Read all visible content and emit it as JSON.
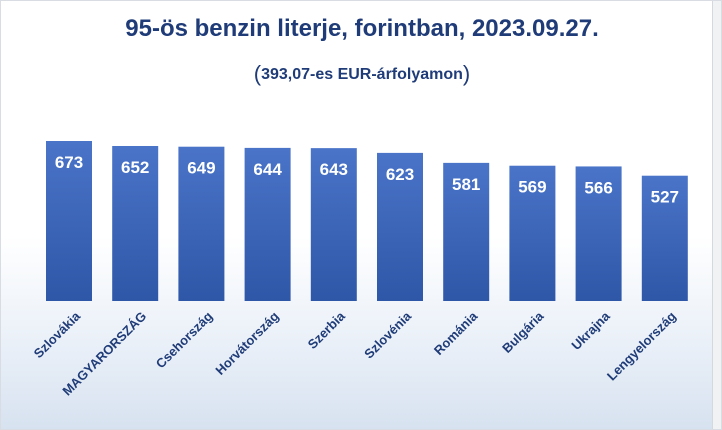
{
  "chart_data": {
    "type": "bar",
    "title": "95-ös benzin literje, forintban, 2023.09.27.",
    "subtitle": "393,07-es EUR-árfolyamon",
    "categories": [
      "Szlovákia",
      "MAGYARORSZÁG",
      "Csehország",
      "Horvátország",
      "Szerbia",
      "Szlovénia",
      "Románia",
      "Bulgária",
      "Ukrajna",
      "Lengyelország"
    ],
    "values": [
      673,
      652,
      649,
      644,
      643,
      623,
      581,
      569,
      566,
      527
    ],
    "value_labels": [
      "673",
      "652",
      "649",
      "644",
      "643",
      "623",
      "581",
      "569",
      "566",
      "527"
    ],
    "bar_color": "#3d67bf",
    "bar_color_dark": "#2c4f9c",
    "text_color": "#1f3c78",
    "data_labels": "inside-top",
    "legend": "none",
    "grid": false
  }
}
